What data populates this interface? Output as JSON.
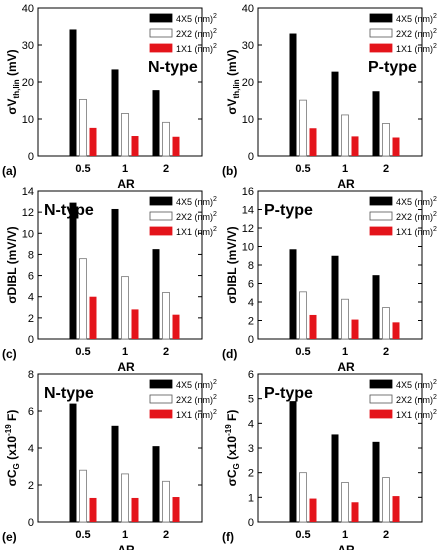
{
  "legend_entries": [
    {
      "prefix": "4X5 (nm)",
      "sup": "2",
      "color": "#000000"
    },
    {
      "prefix": "2X2 (nm)",
      "sup": "2",
      "color": "#ffffff"
    },
    {
      "prefix": "1X1 (nm)",
      "sup": "2",
      "color": "#e4141b"
    }
  ],
  "chart_data": [
    {
      "type": "bar",
      "panel_label": "(a)",
      "annotation": "N-type",
      "ylabel": {
        "main": "σV",
        "sub": "th,lin",
        "unit": " (mV)"
      },
      "xlabel": "AR",
      "categories": [
        "0.5",
        "1",
        "2"
      ],
      "ylim": [
        0,
        40
      ],
      "yticks": [
        "0",
        "10",
        "20",
        "30",
        "40"
      ],
      "series": [
        {
          "name": "4X5 (nm)2",
          "values": [
            34.2,
            23.4,
            17.8
          ]
        },
        {
          "name": "2X2 (nm)2",
          "values": [
            15.3,
            11.5,
            9.1
          ]
        },
        {
          "name": "1X1 (nm)2",
          "values": [
            7.6,
            5.4,
            5.2
          ]
        }
      ]
    },
    {
      "type": "bar",
      "panel_label": "(b)",
      "annotation": "P-type",
      "ylabel": {
        "main": "σV",
        "sub": "th,lin",
        "unit": " (mV)"
      },
      "xlabel": "AR",
      "categories": [
        "0.5",
        "1",
        "2"
      ],
      "ylim": [
        0,
        40
      ],
      "yticks": [
        "0",
        "10",
        "20",
        "30",
        "40"
      ],
      "series": [
        {
          "name": "4X5 (nm)2",
          "values": [
            33.1,
            22.8,
            17.5
          ]
        },
        {
          "name": "2X2 (nm)2",
          "values": [
            15.1,
            11.1,
            8.8
          ]
        },
        {
          "name": "1X1 (nm)2",
          "values": [
            7.5,
            5.3,
            5.0
          ]
        }
      ]
    },
    {
      "type": "bar",
      "panel_label": "(c)",
      "annotation": "N-type",
      "ylabel": {
        "main": "σDIBL",
        "sub": "",
        "unit": " (mV/V)"
      },
      "xlabel": "AR",
      "categories": [
        "0.5",
        "1",
        "2"
      ],
      "ylim": [
        0,
        14
      ],
      "yticks": [
        "0",
        "2",
        "4",
        "6",
        "8",
        "10",
        "12",
        "14"
      ],
      "series": [
        {
          "name": "4X5 (nm)2",
          "values": [
            12.9,
            12.3,
            8.5
          ]
        },
        {
          "name": "2X2 (nm)2",
          "values": [
            7.6,
            5.9,
            4.4
          ]
        },
        {
          "name": "1X1 (nm)2",
          "values": [
            4.0,
            2.8,
            2.3
          ]
        }
      ]
    },
    {
      "type": "bar",
      "panel_label": "(d)",
      "annotation": "P-type",
      "ylabel": {
        "main": "σDIBL",
        "sub": "",
        "unit": " (mV/V)"
      },
      "xlabel": "AR",
      "categories": [
        "0.5",
        "1",
        "2"
      ],
      "ylim": [
        0,
        16
      ],
      "yticks": [
        "0",
        "2",
        "4",
        "6",
        "8",
        "10",
        "12",
        "14",
        "16"
      ],
      "series": [
        {
          "name": "4X5 (nm)2",
          "values": [
            9.7,
            9.0,
            6.9
          ]
        },
        {
          "name": "2X2 (nm)2",
          "values": [
            5.1,
            4.3,
            3.4
          ]
        },
        {
          "name": "1X1 (nm)2",
          "values": [
            2.6,
            2.1,
            1.8
          ]
        }
      ]
    },
    {
      "type": "bar",
      "panel_label": "(e)",
      "annotation": "N-type",
      "ylabel": {
        "main": "σC",
        "sub": "G",
        "unit": " (x10",
        "unit_sup": "-19",
        "unit_end": " F)"
      },
      "xlabel": "AR",
      "categories": [
        "0.5",
        "1",
        "2"
      ],
      "ylim": [
        0,
        8
      ],
      "yticks": [
        "0",
        "2",
        "4",
        "6",
        "8"
      ],
      "series": [
        {
          "name": "4X5 (nm)2",
          "values": [
            6.4,
            5.2,
            4.1
          ]
        },
        {
          "name": "2X2 (nm)2",
          "values": [
            2.8,
            2.6,
            2.2
          ]
        },
        {
          "name": "1X1 (nm)2",
          "values": [
            1.3,
            1.3,
            1.35
          ]
        }
      ]
    },
    {
      "type": "bar",
      "panel_label": "(f)",
      "annotation": "P-type",
      "ylabel": {
        "main": "σC",
        "sub": "G",
        "unit": " (x10",
        "unit_sup": "-19",
        "unit_end": " F)"
      },
      "xlabel": "AR",
      "categories": [
        "0.5",
        "1",
        "2"
      ],
      "ylim": [
        0,
        6
      ],
      "yticks": [
        "0",
        "1",
        "2",
        "3",
        "4",
        "5",
        "6"
      ],
      "series": [
        {
          "name": "4X5 (nm)2",
          "values": [
            4.9,
            3.55,
            3.25
          ]
        },
        {
          "name": "2X2 (nm)2",
          "values": [
            2.0,
            1.6,
            1.8
          ]
        },
        {
          "name": "1X1 (nm)2",
          "values": [
            0.95,
            0.8,
            1.05
          ]
        }
      ]
    }
  ]
}
